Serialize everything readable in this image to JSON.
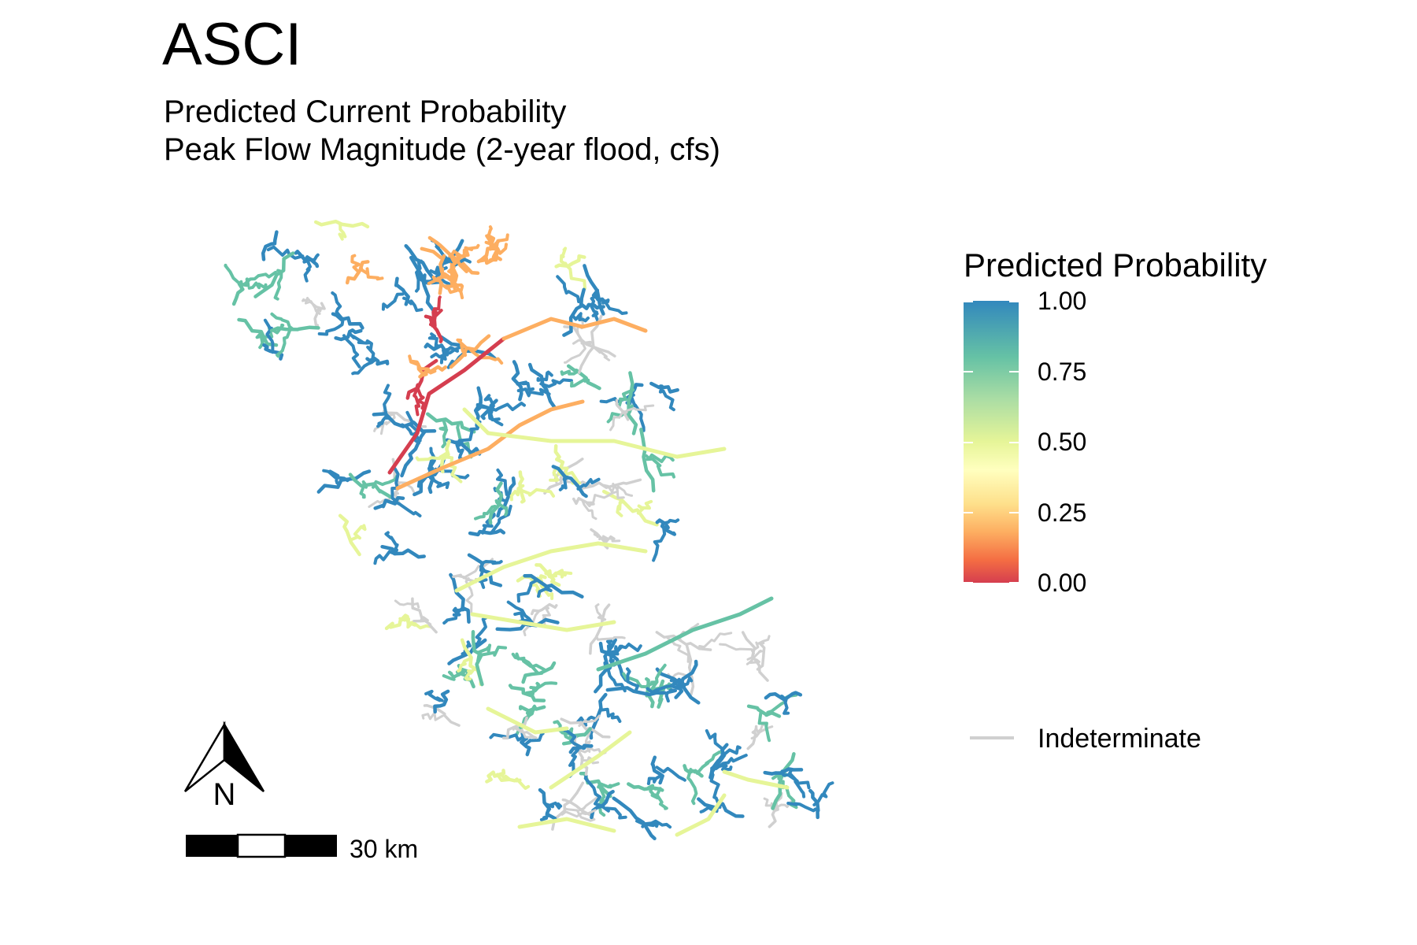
{
  "title": "ASCI",
  "subtitle_line1": "Predicted Current Probability",
  "subtitle_line2": "Peak Flow Magnitude (2-year flood, cfs)",
  "legend": {
    "title": "Predicted Probability",
    "ticks": [
      "1.00",
      "0.75",
      "0.50",
      "0.25",
      "0.00"
    ],
    "indeterminate_label": "Indeterminate",
    "indeterminate_color": "#d0d0d0",
    "palette": [
      "#3288bd",
      "#66c2a5",
      "#abdda4",
      "#e6f598",
      "#ffffbf",
      "#fee08b",
      "#fdae61",
      "#f46d43",
      "#d53e4f"
    ]
  },
  "north_arrow": {
    "label": "N"
  },
  "scale_bar": {
    "label": "30 km"
  },
  "colors": {
    "high": "#3288bd",
    "mid_high": "#66c2a5",
    "mid": "#e6f598",
    "low_mid": "#fdae61",
    "low": "#d53e4f",
    "indeterminate": "#d0d0d0"
  }
}
